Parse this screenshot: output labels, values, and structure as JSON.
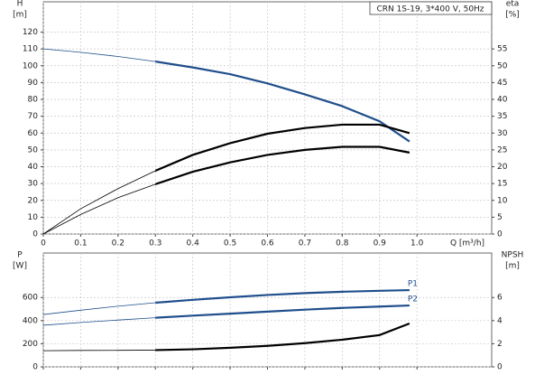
{
  "chart_data": [
    {
      "type": "line",
      "title": "CRN 1S-19, 3*400 V, 50Hz",
      "x_label": "Q [m³/h]",
      "y_label": "H",
      "y_unit": "[m]",
      "y2_label": "eta",
      "y2_unit": "[%]",
      "x": [
        0,
        0.1,
        0.2,
        0.3,
        0.4,
        0.5,
        0.6,
        0.7,
        0.8,
        0.9,
        0.98
      ],
      "operating_range": [
        0.3,
        0.98
      ],
      "xlim": [
        0,
        1.2
      ],
      "xticks": [
        0,
        0.1,
        0.2,
        0.3,
        0.4,
        0.5,
        0.6,
        0.7,
        0.8,
        0.9,
        {
          "value": 1,
          "label": "1.0"
        }
      ],
      "ylim": [
        0,
        138
      ],
      "yticks": [
        0,
        10,
        20,
        30,
        40,
        50,
        60,
        70,
        80,
        90,
        100,
        110,
        120
      ],
      "y2lim": [
        0,
        69
      ],
      "y2ticks": [
        0,
        5,
        10,
        15,
        20,
        25,
        30,
        35,
        40,
        45,
        50,
        55
      ],
      "grid": true,
      "series": [
        {
          "color": "#1f4e8c",
          "values": [
            110,
            108,
            105.5,
            102.5,
            99,
            95,
            89.5,
            83,
            76,
            67,
            55
          ]
        },
        {
          "color": "#000000",
          "axis": "y2",
          "values": [
            0,
            7.5,
            13.5,
            18.8,
            23.5,
            27,
            29.8,
            31.5,
            32.5,
            32.5,
            30
          ]
        },
        {
          "color": "#000000",
          "axis": "y2",
          "values": [
            0,
            5.8,
            10.8,
            14.8,
            18.5,
            21.3,
            23.5,
            25,
            25.9,
            25.9,
            24.2
          ]
        }
      ]
    },
    {
      "type": "line",
      "y_label": "P",
      "y_unit": "[W]",
      "y2_label": "NPSH",
      "y2_unit": "[m]",
      "x": [
        0,
        0.1,
        0.2,
        0.3,
        0.4,
        0.5,
        0.6,
        0.7,
        0.8,
        0.9,
        0.98
      ],
      "operating_range": [
        0.3,
        0.98
      ],
      "xlim": [
        0,
        1.2
      ],
      "xticks": [
        0,
        0.1,
        0.2,
        0.3,
        0.4,
        0.5,
        0.6,
        0.7,
        0.8,
        0.9,
        1
      ],
      "ylim": [
        0,
        985
      ],
      "yticks": [
        0,
        200,
        400,
        600
      ],
      "y2lim": [
        0,
        9.85
      ],
      "y2ticks": [
        0,
        2,
        4,
        6
      ],
      "grid": true,
      "series": [
        {
          "name": "P1",
          "color": "#1f4e8c",
          "values": [
            453,
            490,
            525,
            555,
            580,
            602,
            622,
            638,
            650,
            658,
            664
          ]
        },
        {
          "name": "P2",
          "color": "#1f4e8c",
          "values": [
            360,
            384,
            405,
            425,
            443,
            460,
            478,
            495,
            510,
            522,
            531
          ]
        },
        {
          "color": "#000000",
          "axis": "y2",
          "values": [
            1.4,
            1.42,
            1.43,
            1.45,
            1.52,
            1.65,
            1.82,
            2.05,
            2.35,
            2.75,
            3.75
          ]
        }
      ]
    }
  ]
}
